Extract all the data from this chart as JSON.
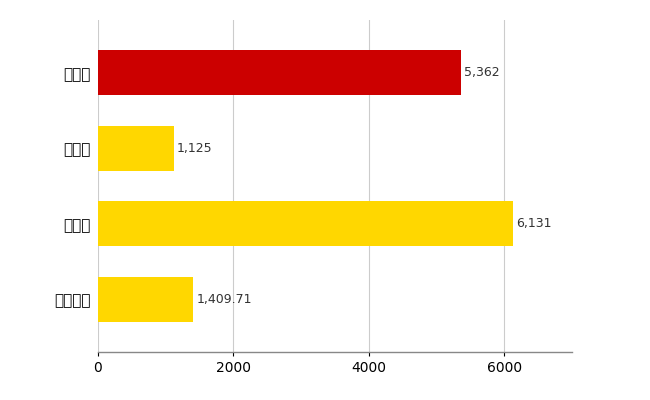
{
  "categories": [
    "全国平均",
    "県最大",
    "県平均",
    "出雲市"
  ],
  "values": [
    1409.71,
    6131,
    1125,
    5362
  ],
  "bar_colors": [
    "#FFD700",
    "#FFD700",
    "#FFD700",
    "#CC0000"
  ],
  "labels": [
    "1,409.71",
    "6,131",
    "1,125",
    "5,362"
  ],
  "xlim": [
    0,
    7000
  ],
  "xticks": [
    0,
    2000,
    4000,
    6000
  ],
  "background_color": "#FFFFFF",
  "grid_color": "#CCCCCC",
  "bar_height": 0.6,
  "label_fontsize": 9,
  "tick_fontsize": 10,
  "label_color": "#333333"
}
